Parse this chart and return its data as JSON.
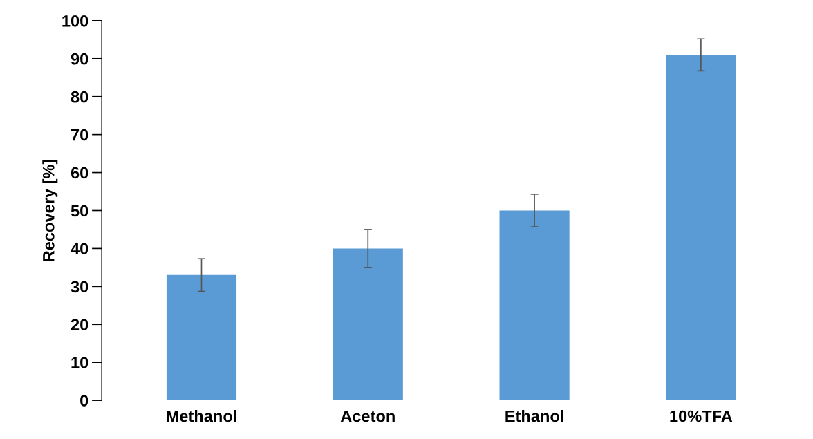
{
  "chart_data": {
    "type": "bar",
    "ylabel": "Recovery [%]",
    "categories": [
      "Methanol",
      "Aceton",
      "Ethanol",
      "10%TFA"
    ],
    "values": [
      33,
      40,
      50,
      91
    ],
    "errors": [
      4.3,
      5,
      4.3,
      4.2
    ],
    "color": "#5b9bd5",
    "ylim": [
      0,
      100
    ],
    "yticks": [
      0,
      10,
      20,
      30,
      40,
      50,
      60,
      70,
      80,
      90,
      100
    ],
    "grid": false
  }
}
